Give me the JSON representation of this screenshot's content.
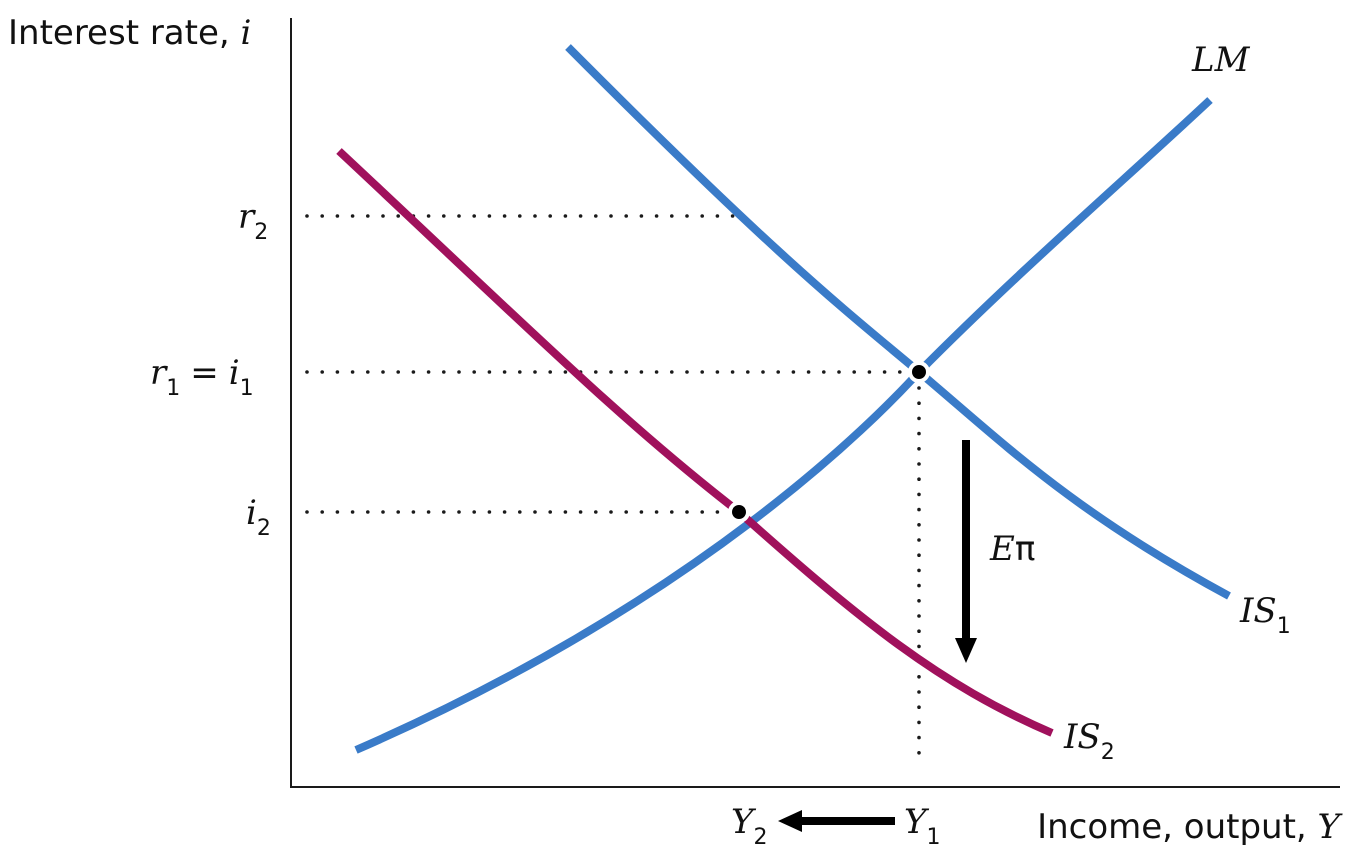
{
  "y_axis": {
    "title": "Interest rate, ",
    "title_var": "i"
  },
  "x_axis": {
    "title": "Income, output, ",
    "title_var": "Y"
  },
  "y_ticks": {
    "r2": {
      "sym": "r",
      "sub": "2"
    },
    "r1_eq_i1": {
      "sym1": "r",
      "sub1": "1",
      "eq": "=",
      "sym2": "i",
      "sub2": "1"
    },
    "i2": {
      "sym": "i",
      "sub": "2"
    }
  },
  "x_ticks": {
    "y2": {
      "sym": "Y",
      "sub": "2"
    },
    "y1": {
      "sym": "Y",
      "sub": "1"
    }
  },
  "curve_labels": {
    "lm": "LM",
    "is1": {
      "sym": "IS",
      "sub": "1"
    },
    "is2": {
      "sym": "IS",
      "sub": "2"
    }
  },
  "shift_label": {
    "sym": "E",
    "greek": "π"
  },
  "colors": {
    "lm_curve": "#3a7bc8",
    "is1_curve": "#3a7bc8",
    "is2_curve": "#a0115c",
    "axis": "#1a1a1a",
    "guides": "#1a1a1a",
    "arrows": "#000000",
    "points": "#000000"
  }
}
